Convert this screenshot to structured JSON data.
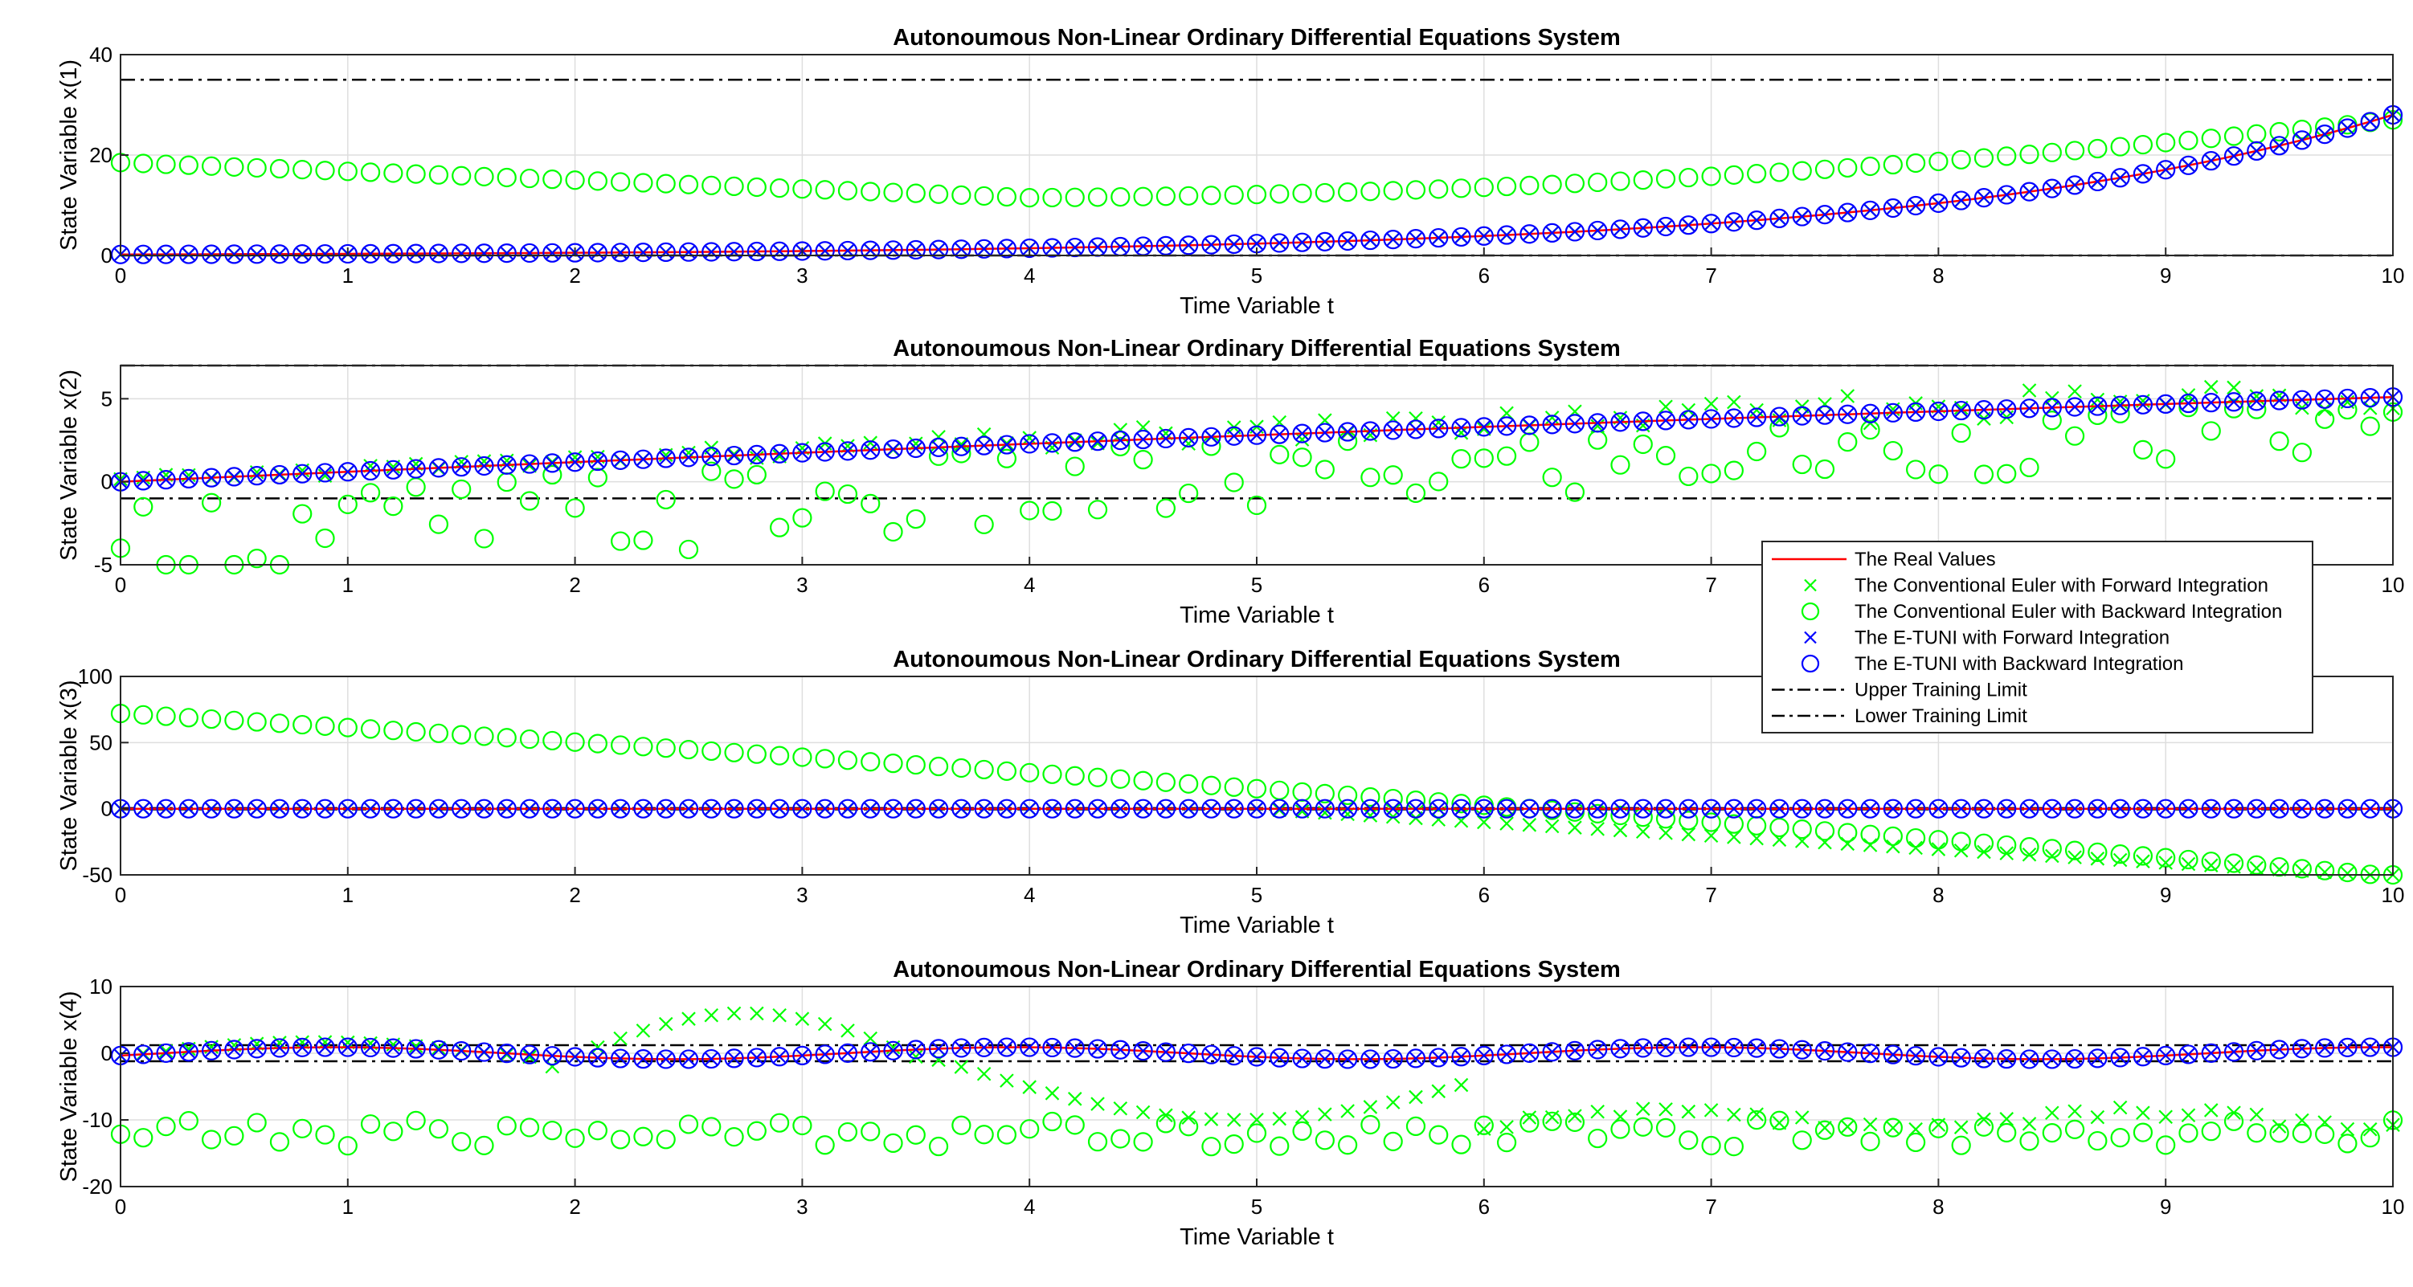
{
  "chart_data": {
    "type": "line",
    "figure_title": "Autonoumous Non-Linear Ordinary Differential Equations System",
    "legend": {
      "placement": "right, over panel 2-3",
      "entries": [
        {
          "key": "real",
          "label": "The Real Values",
          "color": "#ff0000",
          "marker": "line"
        },
        {
          "key": "ce_fwd",
          "label": "The Conventional Euler with Forward Integration",
          "color": "#00ff00",
          "marker": "x"
        },
        {
          "key": "ce_bwd",
          "label": "The Conventional Euler with Backward Integration",
          "color": "#00ff00",
          "marker": "o"
        },
        {
          "key": "et_fwd",
          "label": "The E-TUNI with Forward Integration",
          "color": "#0000ff",
          "marker": "x"
        },
        {
          "key": "et_bwd",
          "label": "The E-TUNI with Backward Integration",
          "color": "#0000ff",
          "marker": "o"
        },
        {
          "key": "upper",
          "label": "Upper Training Limit",
          "color": "#000000",
          "marker": "dashdot"
        },
        {
          "key": "lower",
          "label": "Lower Training Limit",
          "color": "#000000",
          "marker": "dashdot"
        }
      ]
    },
    "x": {
      "start": 0,
      "end": 10,
      "step": 0.1
    },
    "panels": [
      {
        "title": "Autonoumous Non-Linear Ordinary Differential Equations System",
        "xlabel": "Time Variable t",
        "ylabel": "State Variable x(1)",
        "xlim": [
          0,
          10
        ],
        "ylim": [
          0,
          40
        ],
        "xticks": [
          0,
          1,
          2,
          3,
          4,
          5,
          6,
          7,
          8,
          9,
          10
        ],
        "yticks": [
          0,
          20,
          40
        ],
        "upper_limit": 35,
        "lower_limit": 0,
        "real": {
          "fn": "exp_growth",
          "y0": 0.2,
          "y10": 28
        },
        "ce_bwd": {
          "fn": "bathtub",
          "y0": 18.5,
          "ymin": 11.5,
          "tmin": 4,
          "y10": 27
        },
        "ce_fwd": {
          "fn": "follow_real",
          "offset": 0
        }
      },
      {
        "title": "Autonoumous Non-Linear Ordinary Differential Equations System",
        "xlabel": "Time Variable t",
        "ylabel": "State Variable x(2)",
        "xlim": [
          0,
          10
        ],
        "ylim": [
          -5,
          7
        ],
        "xticks": [
          0,
          1,
          2,
          3,
          4,
          5,
          6,
          7,
          8,
          9,
          10
        ],
        "yticks": [
          -5,
          0,
          5
        ],
        "upper_limit": 7,
        "lower_limit": -1,
        "real": {
          "fn": "sat_growth",
          "y0": 0,
          "y10": 5.1
        },
        "ce_bwd": {
          "fn": "noisy_around_real",
          "y0": -4,
          "amp_start": 4,
          "amp_end": 2
        },
        "ce_fwd": {
          "fn": "noisy_above_real",
          "amp_start": 0.3,
          "amp_end": 1.5
        }
      },
      {
        "title": "Autonoumous Non-Linear Ordinary Differential Equations System",
        "xlabel": "Time Variable t",
        "ylabel": "State Variable x(3)",
        "xlim": [
          0,
          10
        ],
        "ylim": [
          -50,
          100
        ],
        "xticks": [
          0,
          1,
          2,
          3,
          4,
          5,
          6,
          7,
          8,
          9,
          10
        ],
        "yticks": [
          -50,
          0,
          50,
          100
        ],
        "upper_limit": 0.5,
        "lower_limit": -0.5,
        "real": {
          "fn": "flat",
          "y": 0
        },
        "ce_bwd": {
          "fn": "decay_linear",
          "y0": 72,
          "y10": -51
        },
        "ce_fwd": {
          "fn": "delayed_drop",
          "t_start": 5,
          "y10": -51
        }
      },
      {
        "title": "Autonoumous Non-Linear Ordinary Differential Equations System",
        "xlabel": "Time Variable t",
        "ylabel": "State Variable x(4)",
        "xlim": [
          0,
          10
        ],
        "ylim": [
          -20,
          10
        ],
        "xticks": [
          0,
          1,
          2,
          3,
          4,
          5,
          6,
          7,
          8,
          9,
          10
        ],
        "yticks": [
          -20,
          -10,
          0,
          10
        ],
        "upper_limit": 1.2,
        "lower_limit": -1.2,
        "real": {
          "fn": "sine",
          "amp": 0.9,
          "period": 3
        },
        "ce_bwd": {
          "fn": "noisy_band",
          "center": -12,
          "amp": 2
        },
        "ce_fwd": {
          "fn": "wave_then_band",
          "peak": 6,
          "trough": -9,
          "end_center": -10
        }
      }
    ]
  }
}
